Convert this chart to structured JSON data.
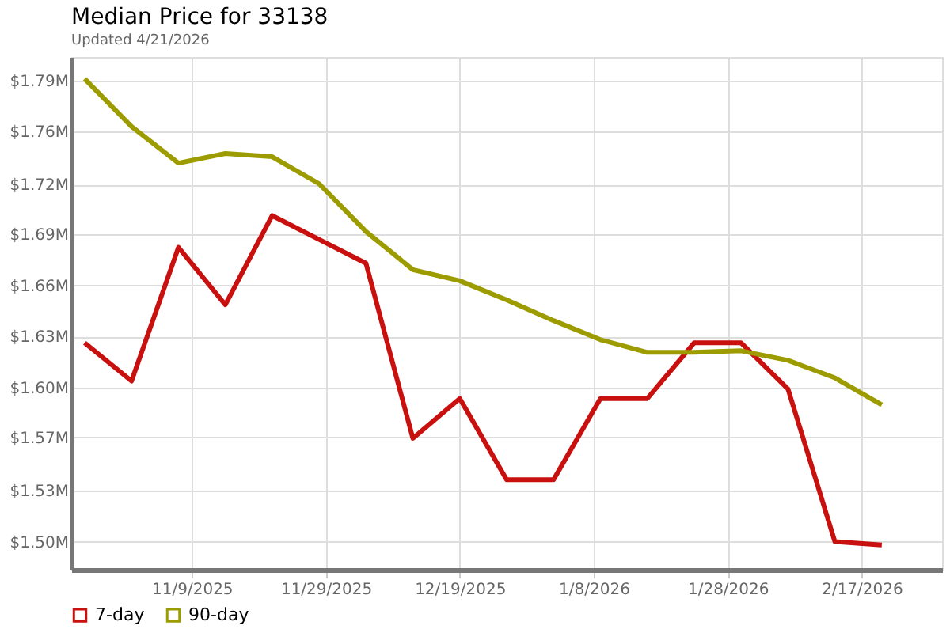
{
  "chart_data": {
    "type": "line",
    "title": "Median Price for 33138",
    "subtitle": "Updated 4/21/2026",
    "x": [
      "2025-10-24",
      "2025-10-31",
      "2025-11-07",
      "2025-11-14",
      "2025-11-21",
      "2025-11-28",
      "2025-12-05",
      "2025-12-12",
      "2025-12-19",
      "2025-12-26",
      "2026-01-02",
      "2026-01-09",
      "2026-01-16",
      "2026-01-23",
      "2026-01-30",
      "2026-02-06",
      "2026-02-13",
      "2026-02-20"
    ],
    "series": [
      {
        "name": "7-day",
        "color": "#c8100f",
        "values": [
          1.625,
          1.601,
          1.685,
          1.649,
          1.705,
          1.69,
          1.675,
          1.565,
          1.59,
          1.539,
          1.539,
          1.59,
          1.59,
          1.625,
          1.625,
          1.596,
          1.5,
          1.498
        ]
      },
      {
        "name": "90-day",
        "color": "#9c9c00",
        "values": [
          1.791,
          1.761,
          1.738,
          1.744,
          1.742,
          1.725,
          1.695,
          1.671,
          1.664,
          1.652,
          1.639,
          1.627,
          1.619,
          1.619,
          1.62,
          1.614,
          1.603,
          1.586
        ]
      }
    ],
    "xlim": [
      "2025-10-22",
      "2026-03-01"
    ],
    "xticks": [
      {
        "value": "2025-11-09",
        "label": "11/9/2025"
      },
      {
        "value": "2025-11-29",
        "label": "11/29/2025"
      },
      {
        "value": "2025-12-19",
        "label": "12/19/2025"
      },
      {
        "value": "2026-01-08",
        "label": "1/8/2026"
      },
      {
        "value": "2026-01-28",
        "label": "1/28/2026"
      },
      {
        "value": "2026-02-17",
        "label": "2/17/2026"
      }
    ],
    "ylim": [
      1.4824,
      1.8047
    ],
    "yticks": [
      {
        "value": 1.5,
        "label": "$1.50M"
      },
      {
        "value": 1.5322,
        "label": "$1.53M"
      },
      {
        "value": 1.5655,
        "label": "$1.57M"
      },
      {
        "value": 1.5967,
        "label": "$1.60M"
      },
      {
        "value": 1.6289,
        "label": "$1.63M"
      },
      {
        "value": 1.6611,
        "label": "$1.66M"
      },
      {
        "value": 1.6933,
        "label": "$1.69M"
      },
      {
        "value": 1.7245,
        "label": "$1.72M"
      },
      {
        "value": 1.7578,
        "label": "$1.76M"
      },
      {
        "value": 1.79,
        "label": "$1.79M"
      }
    ],
    "grid": true,
    "legend": "bottom left",
    "marker": "none",
    "line_style": "solid"
  }
}
